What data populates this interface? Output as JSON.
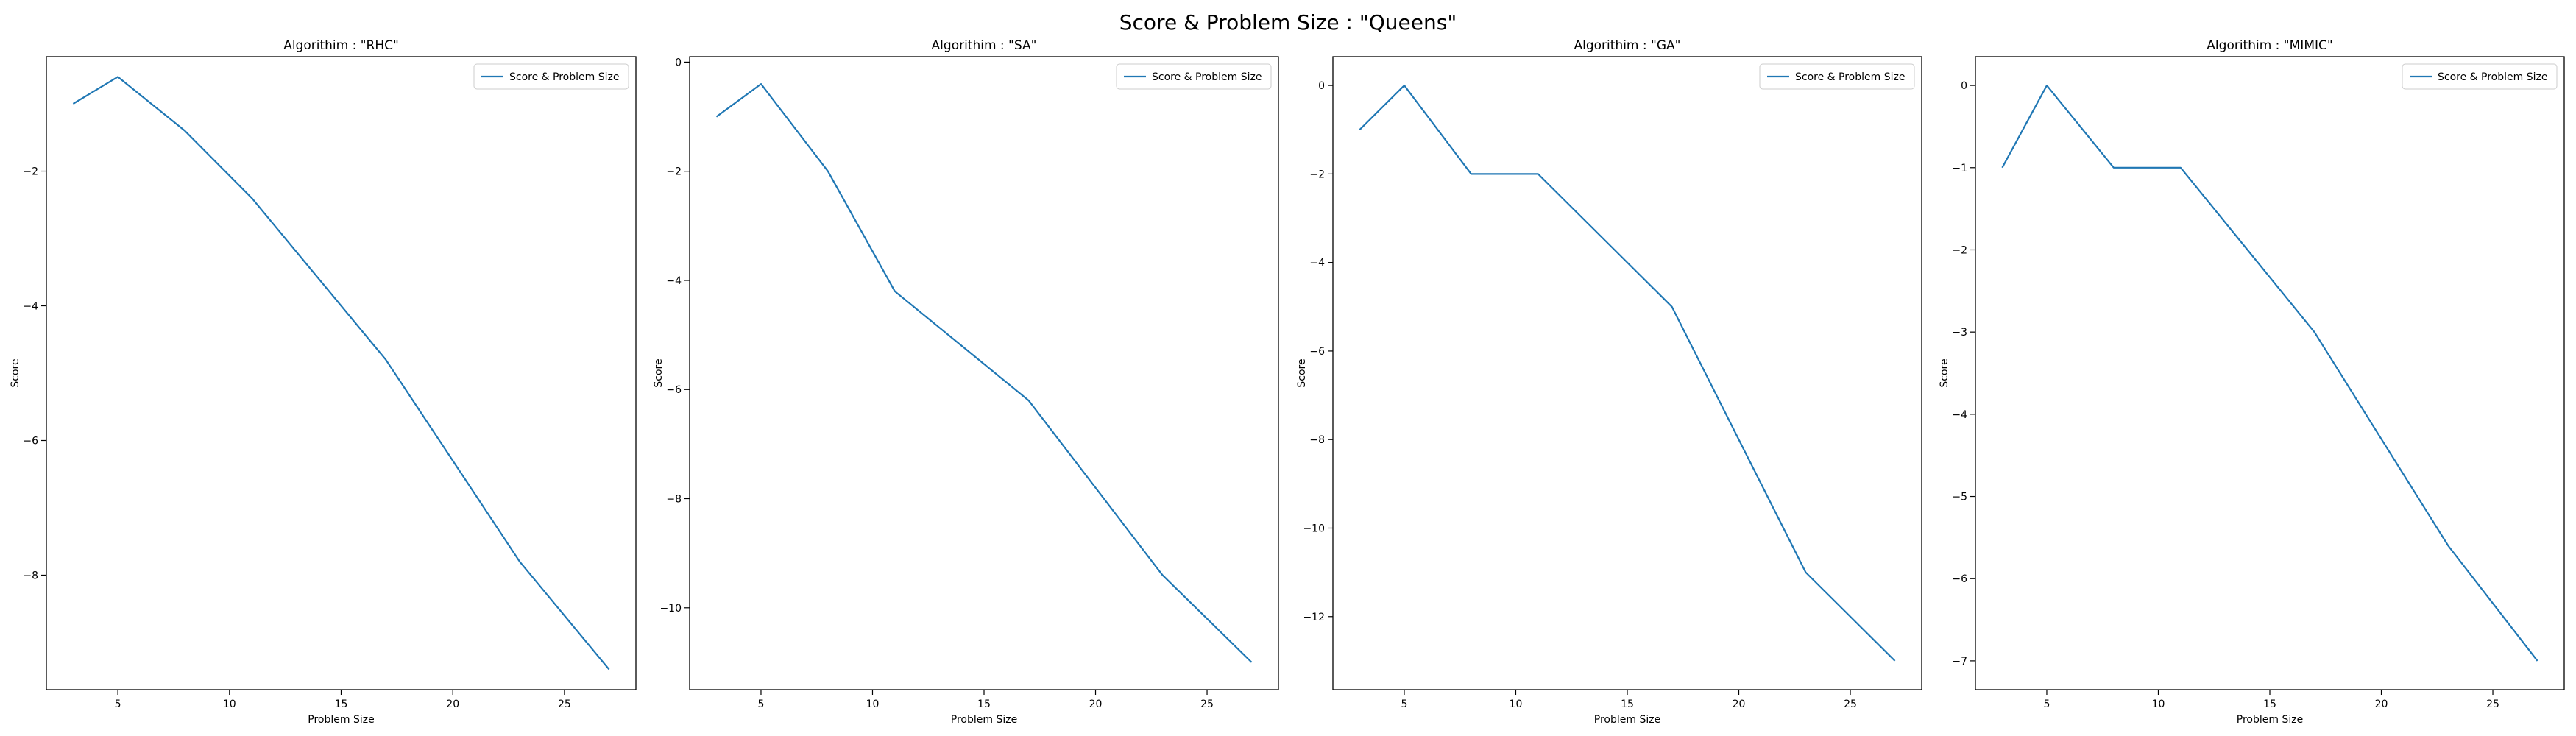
{
  "figure": {
    "suptitle": "Score & Problem Size : \"Queens\""
  },
  "chart_data": [
    {
      "type": "line",
      "title": "Algorithim : \"RHC\"",
      "xlabel": "Problem Size",
      "ylabel": "Score",
      "legend": {
        "placement": "upper right",
        "entries": [
          "Score & Problem Size"
        ]
      },
      "grid": false,
      "xlim": [
        1.8,
        28.2
      ],
      "ylim": [
        -9.7,
        -0.3
      ],
      "xticks": [
        5,
        10,
        15,
        20,
        25
      ],
      "yticks": [
        -8,
        -6,
        -4,
        -2
      ],
      "ytick_labels": [
        "−8",
        "−6",
        "−4",
        "−2"
      ],
      "color": "#1f77b4",
      "series": [
        {
          "name": "Score & Problem Size",
          "x": [
            3,
            5,
            8,
            11,
            14,
            17,
            20,
            23,
            27
          ],
          "y": [
            -1,
            -0.6,
            -1.4,
            -2.4,
            -3.6,
            -4.8,
            -6.3,
            -7.8,
            -9.4
          ]
        }
      ]
    },
    {
      "type": "line",
      "title": "Algorithim : \"SA\"",
      "xlabel": "Problem Size",
      "ylabel": "Score",
      "legend": {
        "placement": "upper right",
        "entries": [
          "Score & Problem Size"
        ]
      },
      "grid": false,
      "xlim": [
        1.8,
        28.2
      ],
      "ylim": [
        -11.5,
        0.1
      ],
      "xticks": [
        5,
        10,
        15,
        20,
        25
      ],
      "yticks": [
        -10,
        -8,
        -6,
        -4,
        -2,
        0
      ],
      "ytick_labels": [
        "−10",
        "−8",
        "−6",
        "−4",
        "−2",
        "0"
      ],
      "color": "#1f77b4",
      "series": [
        {
          "name": "Score & Problem Size",
          "x": [
            3,
            5,
            8,
            11,
            14,
            17,
            20,
            23,
            27
          ],
          "y": [
            -1,
            -0.4,
            -2,
            -4.2,
            -5.2,
            -6.2,
            -7.8,
            -9.4,
            -11
          ]
        }
      ]
    },
    {
      "type": "line",
      "title": "Algorithim : \"GA\"",
      "xlabel": "Problem Size",
      "ylabel": "Score",
      "legend": {
        "placement": "upper right",
        "entries": [
          "Score & Problem Size"
        ]
      },
      "grid": false,
      "xlim": [
        1.8,
        28.2
      ],
      "ylim": [
        -13.65,
        0.65
      ],
      "xticks": [
        5,
        10,
        15,
        20,
        25
      ],
      "yticks": [
        -12,
        -10,
        -8,
        -6,
        -4,
        -2,
        0
      ],
      "ytick_labels": [
        "−12",
        "−10",
        "−8",
        "−6",
        "−4",
        "−2",
        "0"
      ],
      "color": "#1f77b4",
      "series": [
        {
          "name": "Score & Problem Size",
          "x": [
            3,
            5,
            8,
            11,
            14,
            17,
            20,
            23,
            27
          ],
          "y": [
            -1,
            0,
            -2,
            -2,
            -3.5,
            -5,
            -8,
            -11,
            -13
          ]
        }
      ]
    },
    {
      "type": "line",
      "title": "Algorithim : \"MIMIC\"",
      "xlabel": "Problem Size",
      "ylabel": "Score",
      "legend": {
        "placement": "upper right",
        "entries": [
          "Score & Problem Size"
        ]
      },
      "grid": false,
      "xlim": [
        1.8,
        28.2
      ],
      "ylim": [
        -7.35,
        0.35
      ],
      "xticks": [
        5,
        10,
        15,
        20,
        25
      ],
      "yticks": [
        -7,
        -6,
        -5,
        -4,
        -3,
        -2,
        -1,
        0
      ],
      "ytick_labels": [
        "−7",
        "−6",
        "−5",
        "−4",
        "−3",
        "−2",
        "−1",
        "0"
      ],
      "color": "#1f77b4",
      "series": [
        {
          "name": "Score & Problem Size",
          "x": [
            3,
            5,
            8,
            11,
            14,
            17,
            20,
            23,
            27
          ],
          "y": [
            -1,
            0,
            -1,
            -1,
            -2,
            -3,
            -4.3,
            -5.6,
            -7
          ]
        }
      ]
    }
  ]
}
